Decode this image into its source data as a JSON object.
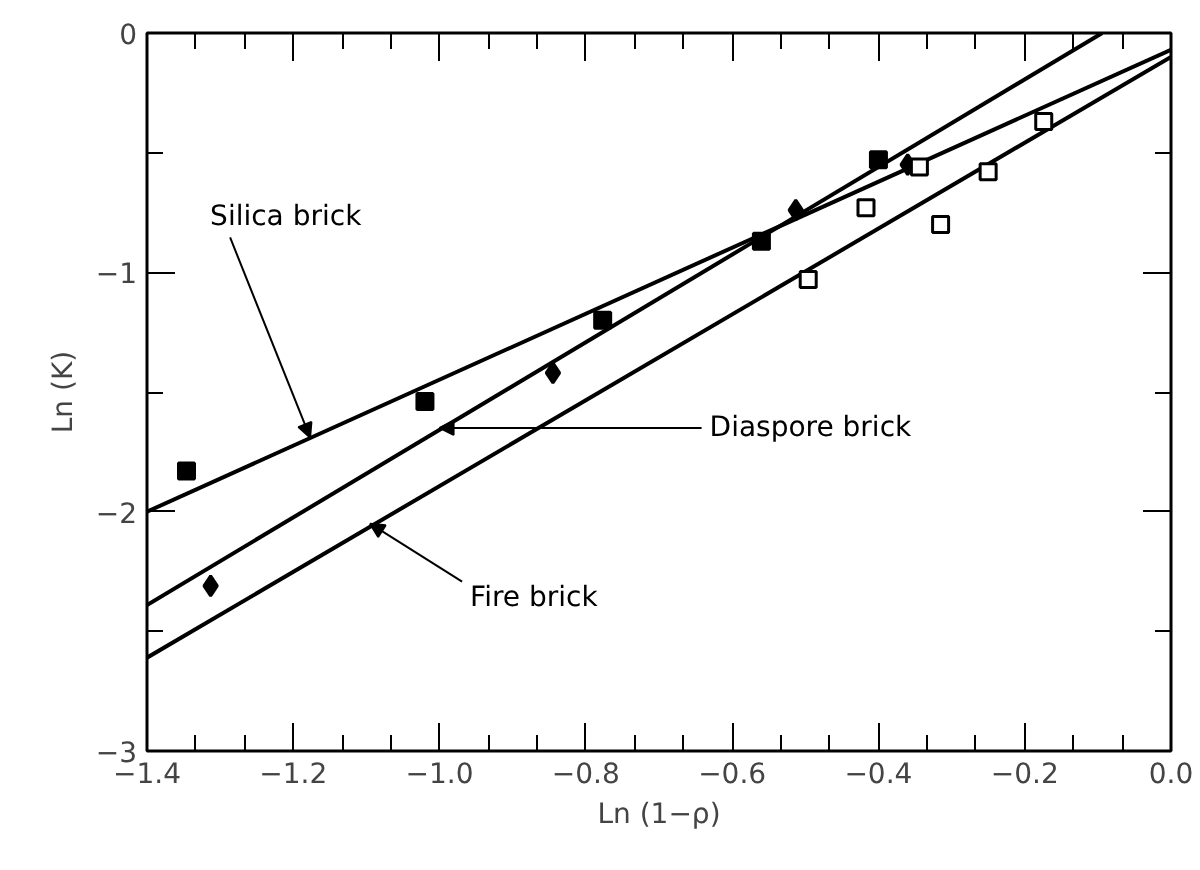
{
  "chart_data": {
    "type": "scatter",
    "xlabel": "Ln (1−ρ)",
    "ylabel": "Ln (K)",
    "xlim": [
      -1.4,
      0.0
    ],
    "ylim": [
      -3,
      0
    ],
    "xticks": [
      {
        "value": -1.4,
        "label": "−1.4"
      },
      {
        "value": -1.2,
        "label": "−1.2"
      },
      {
        "value": -1.0,
        "label": "−1.0"
      },
      {
        "value": -0.8,
        "label": "−0.8"
      },
      {
        "value": -0.6,
        "label": "−0.6"
      },
      {
        "value": -0.4,
        "label": "−0.4"
      },
      {
        "value": -0.2,
        "label": "−0.2"
      },
      {
        "value": 0.0,
        "label": "0.0"
      }
    ],
    "yticks": [
      {
        "value": -3,
        "label": "−3"
      },
      {
        "value": -2,
        "label": "−2"
      },
      {
        "value": -1,
        "label": "−1"
      },
      {
        "value": 0,
        "label": "0"
      }
    ],
    "grid": false,
    "series": [
      {
        "type": "scatter",
        "marker": "square",
        "color": "#000000",
        "x": [
          -1.346,
          -1.02,
          -0.777,
          -0.56,
          -0.4
        ],
        "values": [
          -1.83,
          -1.54,
          -1.2,
          -0.87,
          -0.53
        ]
      },
      {
        "type": "scatter",
        "marker": "diamond",
        "color": "#000000",
        "x": [
          -1.313,
          -0.845,
          -0.513,
          -0.36
        ],
        "values": [
          -2.31,
          -1.42,
          -0.74,
          -0.55
        ]
      },
      {
        "type": "scatter",
        "marker": "square",
        "color": "#ffffff",
        "x": [
          -0.496,
          -0.417,
          -0.344,
          -0.315,
          -0.25,
          -0.174
        ],
        "values": [
          -1.03,
          -0.73,
          -0.56,
          -0.8,
          -0.58,
          -0.37
        ]
      },
      {
        "type": "line",
        "color": "#000000",
        "x": [
          -1.4,
          0.0
        ],
        "values": [
          -2.0,
          -0.07
        ]
      },
      {
        "type": "line",
        "color": "#000000",
        "x": [
          -1.4,
          -0.094
        ],
        "values": [
          -2.39,
          0.0
        ]
      },
      {
        "type": "line",
        "color": "#000000",
        "x": [
          -1.4,
          0.0
        ],
        "values": [
          -2.61,
          -0.1
        ]
      }
    ],
    "annotations": [
      {
        "text": "Silica brick",
        "x": -1.177,
        "y": -1.69
      },
      {
        "text": "Diaspore brick",
        "x": -1.0,
        "y": -1.65
      },
      {
        "text": "Fire brick",
        "x": -1.095,
        "y": -2.05
      }
    ]
  }
}
